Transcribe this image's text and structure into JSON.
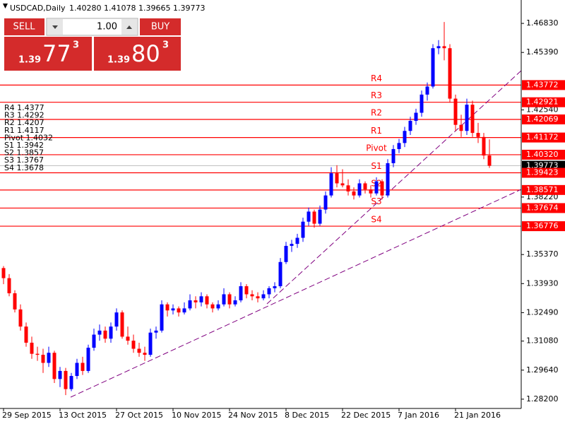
{
  "chart_data": {
    "type": "candlestick",
    "title": "USDCAD,Daily",
    "header_values": "1.40280 1.41078 1.39665 1.39773",
    "categories": [
      "29 Sep 2015",
      null,
      null,
      null,
      null,
      null,
      null,
      null,
      null,
      null,
      "13 Oct 2015",
      null,
      null,
      null,
      null,
      null,
      null,
      null,
      null,
      null,
      "27 Oct 2015",
      null,
      null,
      null,
      null,
      null,
      null,
      null,
      null,
      null,
      "10 Nov 2015",
      null,
      null,
      null,
      null,
      null,
      null,
      null,
      null,
      null,
      "24 Nov 2015",
      null,
      null,
      null,
      null,
      null,
      null,
      null,
      null,
      null,
      "8 Dec 2015",
      null,
      null,
      null,
      null,
      null,
      null,
      null,
      null,
      null,
      "22 Dec 2015",
      null,
      null,
      null,
      null,
      null,
      null,
      null,
      null,
      null,
      "7 Jan 2016",
      null,
      null,
      null,
      null,
      null,
      null,
      null,
      null,
      null,
      "21 Jan 2016",
      null,
      null,
      null,
      null,
      null,
      null
    ],
    "ohlc": [
      [
        1.347,
        1.348,
        1.339,
        1.342
      ],
      [
        1.342,
        1.344,
        1.333,
        1.3345
      ],
      [
        1.3345,
        1.336,
        1.325,
        1.3265
      ],
      [
        1.3265,
        1.329,
        1.316,
        1.318
      ],
      [
        1.318,
        1.32,
        1.308,
        1.31
      ],
      [
        1.31,
        1.313,
        1.302,
        1.3045
      ],
      [
        1.3045,
        1.308,
        1.301,
        1.304
      ],
      [
        1.304,
        1.307,
        1.295,
        1.3
      ],
      [
        1.3,
        1.308,
        1.298,
        1.305
      ],
      [
        1.305,
        1.306,
        1.29,
        1.292
      ],
      [
        1.292,
        1.298,
        1.288,
        1.296
      ],
      [
        1.296,
        1.2975,
        1.284,
        1.287
      ],
      [
        1.287,
        1.295,
        1.286,
        1.2935
      ],
      [
        1.2935,
        1.302,
        1.292,
        1.3
      ],
      [
        1.3,
        1.303,
        1.294,
        1.296
      ],
      [
        1.296,
        1.309,
        1.295,
        1.3075
      ],
      [
        1.3075,
        1.317,
        1.306,
        1.314
      ],
      [
        1.314,
        1.319,
        1.311,
        1.316
      ],
      [
        1.316,
        1.318,
        1.31,
        1.312
      ],
      [
        1.312,
        1.32,
        1.31,
        1.318
      ],
      [
        1.318,
        1.327,
        1.316,
        1.325
      ],
      [
        1.325,
        1.326,
        1.312,
        1.313
      ],
      [
        1.313,
        1.318,
        1.309,
        1.311
      ],
      [
        1.311,
        1.314,
        1.305,
        1.307
      ],
      [
        1.307,
        1.31,
        1.303,
        1.305
      ],
      [
        1.305,
        1.308,
        1.301,
        1.304
      ],
      [
        1.304,
        1.317,
        1.303,
        1.315
      ],
      [
        1.315,
        1.318,
        1.312,
        1.316
      ],
      [
        1.316,
        1.331,
        1.315,
        1.329
      ],
      [
        1.329,
        1.33,
        1.323,
        1.326
      ],
      [
        1.326,
        1.329,
        1.324,
        1.327
      ],
      [
        1.327,
        1.328,
        1.323,
        1.325
      ],
      [
        1.325,
        1.33,
        1.324,
        1.327
      ],
      [
        1.327,
        1.334,
        1.326,
        1.331
      ],
      [
        1.331,
        1.333,
        1.327,
        1.33
      ],
      [
        1.33,
        1.335,
        1.328,
        1.333
      ],
      [
        1.333,
        1.334,
        1.327,
        1.329
      ],
      [
        1.329,
        1.33,
        1.325,
        1.327
      ],
      [
        1.327,
        1.331,
        1.326,
        1.329
      ],
      [
        1.329,
        1.337,
        1.328,
        1.334
      ],
      [
        1.334,
        1.335,
        1.327,
        1.329
      ],
      [
        1.329,
        1.333,
        1.328,
        1.331
      ],
      [
        1.331,
        1.34,
        1.33,
        1.338
      ],
      [
        1.338,
        1.339,
        1.332,
        1.334
      ],
      [
        1.334,
        1.336,
        1.331,
        1.333
      ],
      [
        1.333,
        1.335,
        1.33,
        1.332
      ],
      [
        1.332,
        1.336,
        1.331,
        1.334
      ],
      [
        1.334,
        1.338,
        1.332,
        1.337
      ],
      [
        1.337,
        1.34,
        1.335,
        1.338
      ],
      [
        1.338,
        1.352,
        1.337,
        1.35
      ],
      [
        1.35,
        1.36,
        1.349,
        1.358
      ],
      [
        1.358,
        1.361,
        1.355,
        1.359
      ],
      [
        1.359,
        1.364,
        1.357,
        1.362
      ],
      [
        1.362,
        1.372,
        1.36,
        1.37
      ],
      [
        1.37,
        1.377,
        1.368,
        1.375
      ],
      [
        1.375,
        1.376,
        1.367,
        1.369
      ],
      [
        1.369,
        1.378,
        1.368,
        1.376
      ],
      [
        1.376,
        1.385,
        1.374,
        1.383
      ],
      [
        1.383,
        1.397,
        1.382,
        1.394
      ],
      [
        1.394,
        1.398,
        1.387,
        1.389
      ],
      [
        1.389,
        1.396,
        1.387,
        1.388
      ],
      [
        1.388,
        1.391,
        1.383,
        1.385
      ],
      [
        1.385,
        1.387,
        1.381,
        1.383
      ],
      [
        1.383,
        1.391,
        1.382,
        1.389
      ],
      [
        1.389,
        1.39,
        1.384,
        1.386
      ],
      [
        1.386,
        1.388,
        1.382,
        1.384
      ],
      [
        1.384,
        1.392,
        1.383,
        1.39
      ],
      [
        1.39,
        1.391,
        1.381,
        1.383
      ],
      [
        1.383,
        1.401,
        1.382,
        1.399
      ],
      [
        1.399,
        1.408,
        1.397,
        1.406
      ],
      [
        1.406,
        1.411,
        1.404,
        1.409
      ],
      [
        1.409,
        1.417,
        1.407,
        1.415
      ],
      [
        1.415,
        1.422,
        1.413,
        1.42
      ],
      [
        1.42,
        1.426,
        1.418,
        1.424
      ],
      [
        1.424,
        1.435,
        1.422,
        1.433
      ],
      [
        1.433,
        1.439,
        1.43,
        1.437
      ],
      [
        1.437,
        1.458,
        1.436,
        1.456
      ],
      [
        1.456,
        1.46,
        1.453,
        1.457
      ],
      [
        1.457,
        1.469,
        1.45,
        1.456
      ],
      [
        1.456,
        1.458,
        1.429,
        1.431
      ],
      [
        1.431,
        1.433,
        1.415,
        1.418
      ],
      [
        1.418,
        1.423,
        1.412,
        1.415
      ],
      [
        1.415,
        1.431,
        1.413,
        1.428
      ],
      [
        1.428,
        1.43,
        1.412,
        1.414
      ],
      [
        1.414,
        1.419,
        1.409,
        1.412
      ],
      [
        1.412,
        1.414,
        1.401,
        1.4028
      ],
      [
        1.4028,
        1.41078,
        1.39665,
        1.39773
      ]
    ],
    "up_color": "#0000ff",
    "down_color": "#ff0000",
    "ylim": [
      1.2774,
      1.4799
    ],
    "yticks": [
      {
        "value": 1.4683,
        "label": "1.46830"
      },
      {
        "value": 1.4539,
        "label": "1.45390"
      },
      {
        "value": 1.4254,
        "label": "1.42540"
      },
      {
        "value": 1.3822,
        "label": "1.38220"
      },
      {
        "value": 1.3537,
        "label": "1.35370"
      },
      {
        "value": 1.3393,
        "label": "1.33930"
      },
      {
        "value": 1.3249,
        "label": "1.32490"
      },
      {
        "value": 1.3108,
        "label": "1.31080"
      },
      {
        "value": 1.2964,
        "label": "1.29640"
      },
      {
        "value": 1.282,
        "label": "1.28200"
      }
    ],
    "grid": false,
    "levels": [
      {
        "name": "R4",
        "value": 1.43772
      },
      {
        "name": "R3",
        "value": 1.42921
      },
      {
        "name": "R2",
        "value": 1.42069
      },
      {
        "name": "R1",
        "value": 1.41172
      },
      {
        "name": "Pivot",
        "value": 1.4032,
        "value_label": "1.40320"
      },
      {
        "name": "S1",
        "value": 1.39423
      },
      {
        "name": "S2",
        "value": 1.38571
      },
      {
        "name": "S3",
        "value": 1.37674
      },
      {
        "name": "S4",
        "value": 1.36776
      }
    ],
    "level_color": "#ff0000",
    "current_price": 1.39773,
    "pivot_info": [
      "R4 1.4377",
      "R3 1.4292",
      "R2 1.4207",
      "R1 1.4117",
      "Pivot 1.4032",
      "S1 1.3942",
      "S2 1.3857",
      "S3 1.3767",
      "S4 1.3678"
    ],
    "trade_panel": {
      "sell": "SELL",
      "buy": "BUY",
      "lot": "1.00",
      "sell_price": [
        "1.39",
        "77",
        "3"
      ],
      "buy_price": [
        "1.39",
        "80",
        "3"
      ]
    }
  }
}
